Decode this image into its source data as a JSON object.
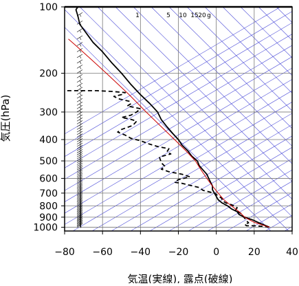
{
  "chart_data": {
    "type": "line",
    "xlabel": "気温(実線), 露点(破線)",
    "ylabel": "気圧(hPa)",
    "xlim": [
      -80,
      40
    ],
    "ylim": [
      1040,
      100
    ],
    "y_scale": "log",
    "x_ticks": [
      -80,
      -60,
      -40,
      -20,
      0,
      20,
      40
    ],
    "x_tick_labels": [
      "−80",
      "−60",
      "−40",
      "−20",
      "0",
      "20",
      "40"
    ],
    "y_ticks": [
      100,
      200,
      300,
      400,
      500,
      600,
      700,
      800,
      900,
      1000
    ],
    "mixing_ratio_labels": [
      "1",
      "5",
      "10",
      "15",
      "20",
      "g"
    ],
    "grid": true,
    "series": [
      {
        "role": "temperature",
        "style": "solid",
        "color": "#000000",
        "points": [
          [
            28,
            1000
          ],
          [
            25,
            975
          ],
          [
            22,
            950
          ],
          [
            19,
            925
          ],
          [
            15,
            900
          ],
          [
            12,
            875
          ],
          [
            11,
            850
          ],
          [
            8,
            825
          ],
          [
            6,
            800
          ],
          [
            3,
            775
          ],
          [
            1,
            750
          ],
          [
            0,
            725
          ],
          [
            -1,
            700
          ],
          [
            -2,
            675
          ],
          [
            -2,
            650
          ],
          [
            -3,
            625
          ],
          [
            -4,
            600
          ],
          [
            -5,
            575
          ],
          [
            -7,
            550
          ],
          [
            -9,
            525
          ],
          [
            -10,
            500
          ],
          [
            -13,
            475
          ],
          [
            -15,
            450
          ],
          [
            -18,
            425
          ],
          [
            -20,
            400
          ],
          [
            -23,
            375
          ],
          [
            -26,
            350
          ],
          [
            -29,
            325
          ],
          [
            -31,
            300
          ],
          [
            -35,
            275
          ],
          [
            -40,
            250
          ],
          [
            -45,
            225
          ],
          [
            -50,
            200
          ],
          [
            -55,
            180
          ],
          [
            -60,
            160
          ],
          [
            -65,
            145
          ],
          [
            -69,
            130
          ],
          [
            -72,
            120
          ],
          [
            -73,
            110
          ],
          [
            -74,
            103
          ],
          [
            -73,
            100
          ]
        ]
      },
      {
        "role": "dewpoint",
        "style": "dashed",
        "color": "#000000",
        "points": [
          [
            28,
            1000
          ],
          [
            24,
            990
          ],
          [
            20,
            985
          ],
          [
            16,
            985
          ],
          [
            15,
            970
          ],
          [
            17,
            955
          ],
          [
            16,
            935
          ],
          [
            15,
            910
          ],
          [
            14,
            890
          ],
          [
            13,
            865
          ],
          [
            10,
            840
          ],
          [
            11,
            815
          ],
          [
            8,
            790
          ],
          [
            5,
            775
          ],
          [
            3,
            755
          ],
          [
            3,
            740
          ],
          [
            1,
            720
          ],
          [
            -1,
            700
          ],
          [
            -7,
            680
          ],
          [
            -9,
            660
          ],
          [
            -14,
            645
          ],
          [
            -18,
            632
          ],
          [
            -22,
            625
          ],
          [
            -20,
            608
          ],
          [
            -17,
            600
          ],
          [
            -14,
            590
          ],
          [
            -18,
            575
          ],
          [
            -25,
            560
          ],
          [
            -29,
            545
          ],
          [
            -27,
            530
          ],
          [
            -29,
            510
          ],
          [
            -30,
            480
          ],
          [
            -24,
            465
          ],
          [
            -26,
            455
          ],
          [
            -25,
            440
          ],
          [
            -31,
            430
          ],
          [
            -35,
            420
          ],
          [
            -40,
            405
          ],
          [
            -45,
            395
          ],
          [
            -48,
            382
          ],
          [
            -52,
            370
          ],
          [
            -50,
            360
          ],
          [
            -44,
            345
          ],
          [
            -42,
            330
          ],
          [
            -46,
            322
          ],
          [
            -50,
            318
          ],
          [
            -45,
            310
          ],
          [
            -42,
            300
          ],
          [
            -40,
            290
          ],
          [
            -44,
            285
          ],
          [
            -47,
            282
          ],
          [
            -45,
            275
          ],
          [
            -46,
            268
          ],
          [
            -51,
            262
          ],
          [
            -54,
            255
          ],
          [
            -50,
            250
          ],
          [
            -48,
            245
          ],
          [
            -55,
            242
          ],
          [
            -63,
            240
          ],
          [
            -72,
            240
          ],
          [
            -82,
            240
          ]
        ]
      },
      {
        "role": "parcel",
        "style": "solid",
        "color": "#cc0000",
        "points": [
          [
            28,
            1000
          ],
          [
            20,
            950
          ],
          [
            15,
            900
          ],
          [
            12,
            850
          ],
          [
            8,
            800
          ],
          [
            4,
            750
          ],
          [
            1,
            700
          ],
          [
            -2,
            650
          ],
          [
            -5,
            600
          ],
          [
            -8,
            550
          ],
          [
            -11,
            500
          ],
          [
            -16,
            450
          ],
          [
            -22,
            400
          ],
          [
            -29,
            350
          ],
          [
            -37,
            300
          ],
          [
            -46,
            250
          ],
          [
            -58,
            200
          ],
          [
            -67,
            170
          ],
          [
            -74,
            150
          ],
          [
            -78,
            140
          ]
        ]
      }
    ]
  }
}
